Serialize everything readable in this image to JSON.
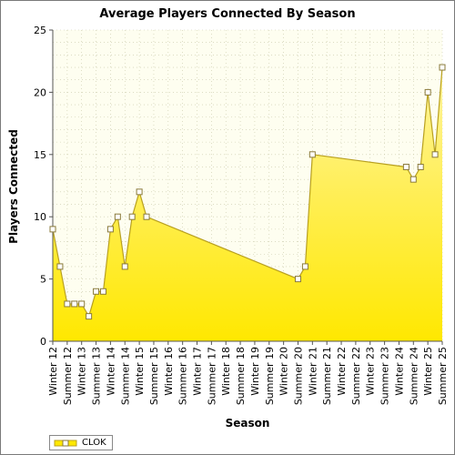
{
  "chart_data": {
    "type": "area",
    "title": "Average Players Connected By Season",
    "xlabel": "Season",
    "ylabel": "Players Connected",
    "ylim": [
      0,
      25
    ],
    "yticks": [
      0,
      5,
      10,
      15,
      20,
      25
    ],
    "categories": [
      "Winter 12",
      "Summer 12",
      "Winter 13",
      "Summer 13",
      "Winter 14",
      "Summer 14",
      "Winter 15",
      "Summer 15",
      "Winter 16",
      "Summer 16",
      "Winter 17",
      "Summer 17",
      "Winter 18",
      "Summer 18",
      "Winter 19",
      "Summer 19",
      "Winter 20",
      "Summer 20",
      "Winter 21",
      "Summer 21",
      "Winter 22",
      "Summer 22",
      "Winter 23",
      "Summer 23",
      "Winter 24",
      "Summer 24",
      "Winter 25",
      "Summer 25"
    ],
    "grid": true,
    "legend_position": "bottom-left",
    "series": [
      {
        "name": "CLOK",
        "points": [
          {
            "x": 0.0,
            "y": 9
          },
          {
            "x": 0.5,
            "y": 6
          },
          {
            "x": 1.0,
            "y": 3
          },
          {
            "x": 1.5,
            "y": 3
          },
          {
            "x": 2.0,
            "y": 3
          },
          {
            "x": 2.5,
            "y": 2
          },
          {
            "x": 3.0,
            "y": 4
          },
          {
            "x": 3.5,
            "y": 4
          },
          {
            "x": 4.0,
            "y": 9
          },
          {
            "x": 4.5,
            "y": 10
          },
          {
            "x": 5.0,
            "y": 6
          },
          {
            "x": 5.5,
            "y": 10
          },
          {
            "x": 6.0,
            "y": 12
          },
          {
            "x": 6.5,
            "y": 10
          },
          {
            "x": 17.0,
            "y": 5
          },
          {
            "x": 17.5,
            "y": 6
          },
          {
            "x": 18.0,
            "y": 15
          },
          {
            "x": 24.5,
            "y": 14
          },
          {
            "x": 25.0,
            "y": 13
          },
          {
            "x": 25.5,
            "y": 14
          },
          {
            "x": 26.0,
            "y": 20
          },
          {
            "x": 26.5,
            "y": 15
          },
          {
            "x": 27.0,
            "y": 22
          }
        ]
      }
    ],
    "colors": {
      "area_top": "#fff4a0",
      "area_bottom": "#ffe800",
      "line": "#b8a020",
      "marker_stroke": "#8a7a3a",
      "marker_fill": "#ffffff",
      "plot_background": "#fefef0",
      "gridline": "#c8c8a8"
    }
  }
}
